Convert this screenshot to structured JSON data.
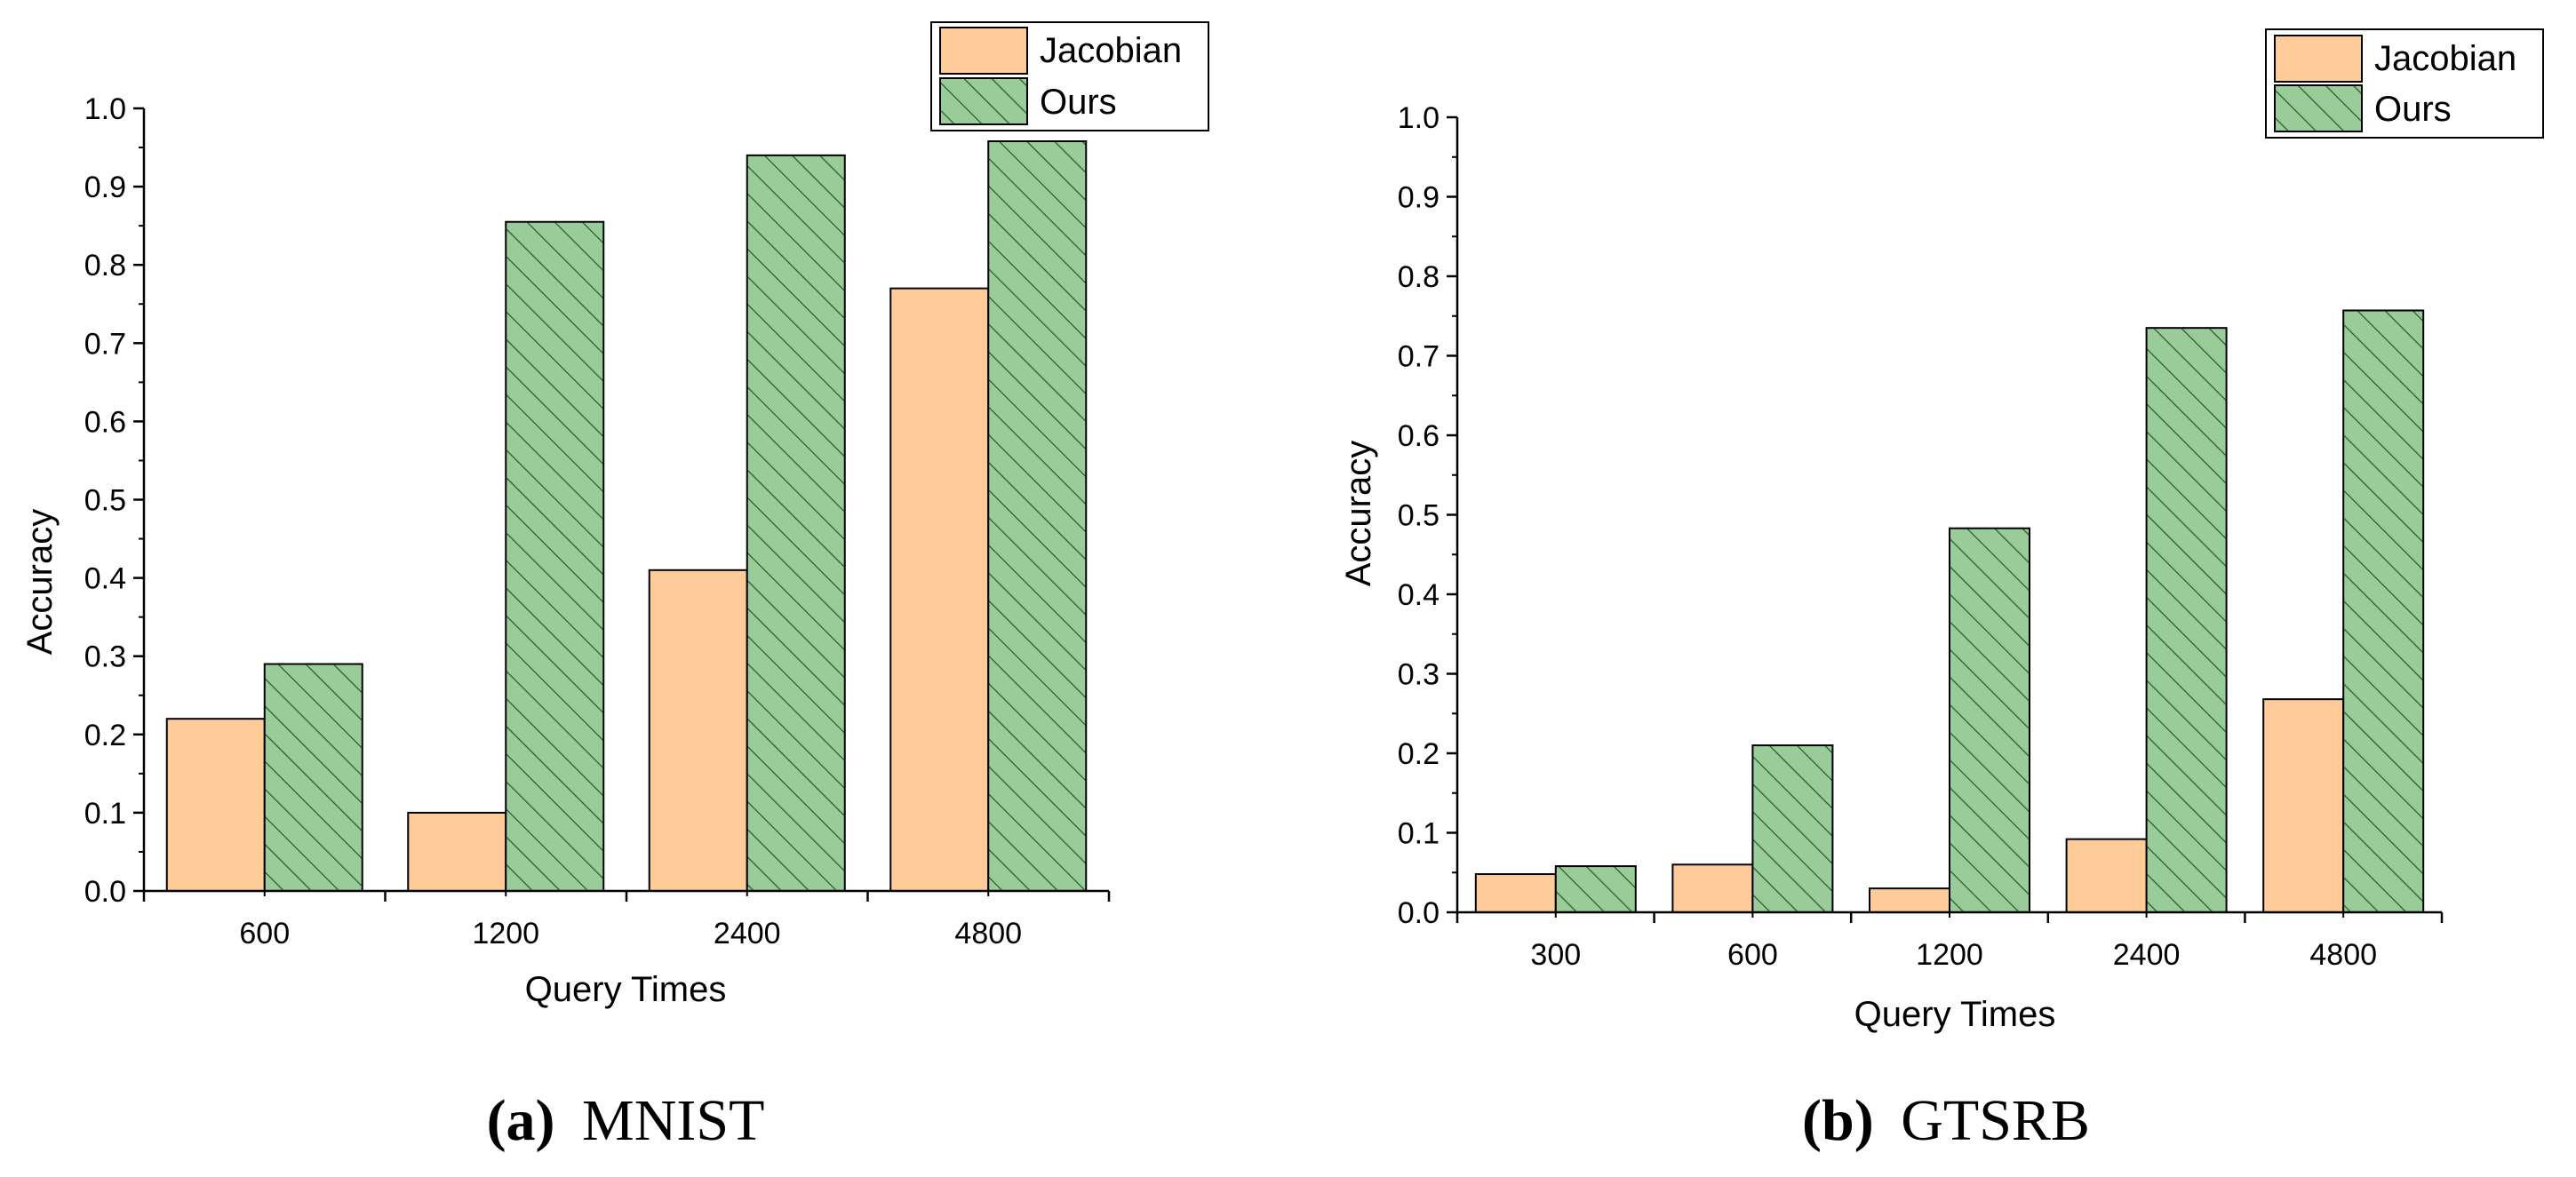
{
  "figure": {
    "panels": [
      {
        "id": "a",
        "caption_letter": "(a)",
        "caption_text": "MNIST"
      },
      {
        "id": "b",
        "caption_letter": "(b)",
        "caption_text": "GTSRB"
      }
    ]
  },
  "colors": {
    "jacobian_fill": "#FFCC99",
    "ours_fill": "#99CC99",
    "ours_hatch": "#2A5A2A",
    "axis": "#000000"
  },
  "chart_data": [
    {
      "type": "bar",
      "title": "MNIST",
      "xlabel": "Query Times",
      "ylabel": "Accuracy",
      "categories": [
        "600",
        "1200",
        "2400",
        "4800"
      ],
      "ylim": [
        0,
        1.0
      ],
      "yticks": [
        "0.0",
        "0.1",
        "0.2",
        "0.3",
        "0.4",
        "0.5",
        "0.6",
        "0.7",
        "0.8",
        "0.9",
        "1.0"
      ],
      "legend": {
        "placement": "top-right",
        "entries": [
          "Jacobian",
          "Ours"
        ]
      },
      "series": [
        {
          "name": "Jacobian",
          "values": [
            0.22,
            0.1,
            0.41,
            0.77
          ]
        },
        {
          "name": "Ours",
          "values": [
            0.29,
            0.855,
            0.94,
            0.958
          ]
        }
      ]
    },
    {
      "type": "bar",
      "title": "GTSRB",
      "xlabel": "Query Times",
      "ylabel": "Accuracy",
      "categories": [
        "300",
        "600",
        "1200",
        "2400",
        "4800"
      ],
      "ylim": [
        0,
        1.0
      ],
      "yticks": [
        "0.0",
        "0.1",
        "0.2",
        "0.3",
        "0.4",
        "0.5",
        "0.6",
        "0.7",
        "0.8",
        "0.9",
        "1.0"
      ],
      "legend": {
        "placement": "top-right",
        "entries": [
          "Jacobian",
          "Ours"
        ]
      },
      "series": [
        {
          "name": "Jacobian",
          "values": [
            0.048,
            0.06,
            0.03,
            0.092,
            0.268
          ]
        },
        {
          "name": "Ours",
          "values": [
            0.058,
            0.21,
            0.483,
            0.735,
            0.757
          ]
        }
      ]
    }
  ]
}
